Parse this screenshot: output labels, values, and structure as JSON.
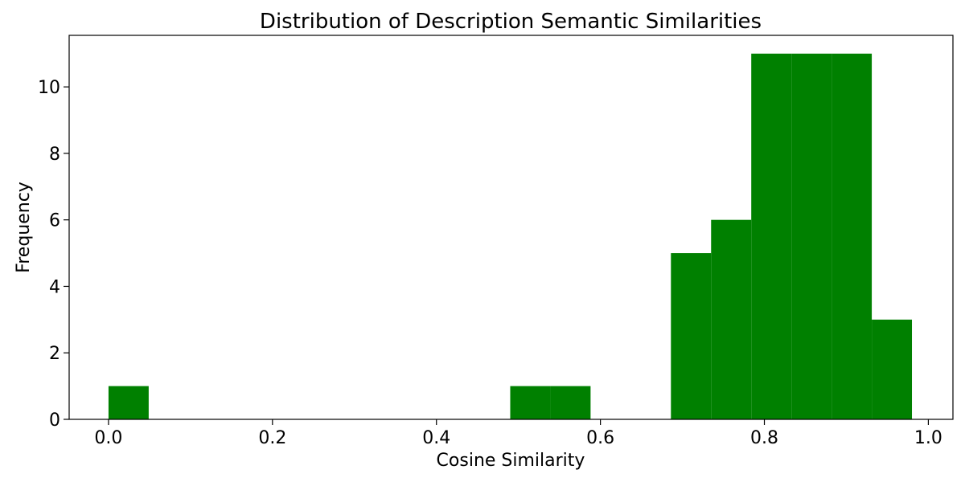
{
  "chart_data": {
    "type": "bar",
    "title": "Distribution of Description Semantic Similarities",
    "xlabel": "Cosine Similarity",
    "ylabel": "Frequency",
    "bar_color": "#008000",
    "xlim": [
      -0.048,
      1.03
    ],
    "ylim": [
      0,
      11.55
    ],
    "xticks": [
      0.0,
      0.2,
      0.4,
      0.6,
      0.8,
      1.0
    ],
    "xtick_labels": [
      "0.0",
      "0.2",
      "0.4",
      "0.6",
      "0.8",
      "1.0"
    ],
    "yticks": [
      0,
      2,
      4,
      6,
      8,
      10
    ],
    "ytick_labels": [
      "0",
      "2",
      "4",
      "6",
      "8",
      "10"
    ],
    "grid": false,
    "bins": [
      {
        "x0": 0.0,
        "x1": 0.049,
        "count": 1
      },
      {
        "x0": 0.049,
        "x1": 0.098,
        "count": 0
      },
      {
        "x0": 0.098,
        "x1": 0.147,
        "count": 0
      },
      {
        "x0": 0.147,
        "x1": 0.196,
        "count": 0
      },
      {
        "x0": 0.196,
        "x1": 0.245,
        "count": 0
      },
      {
        "x0": 0.245,
        "x1": 0.294,
        "count": 0
      },
      {
        "x0": 0.294,
        "x1": 0.343,
        "count": 0
      },
      {
        "x0": 0.343,
        "x1": 0.392,
        "count": 0
      },
      {
        "x0": 0.392,
        "x1": 0.441,
        "count": 0
      },
      {
        "x0": 0.441,
        "x1": 0.49,
        "count": 0
      },
      {
        "x0": 0.49,
        "x1": 0.539,
        "count": 1
      },
      {
        "x0": 0.539,
        "x1": 0.588,
        "count": 1
      },
      {
        "x0": 0.588,
        "x1": 0.637,
        "count": 0
      },
      {
        "x0": 0.637,
        "x1": 0.686,
        "count": 0
      },
      {
        "x0": 0.686,
        "x1": 0.735,
        "count": 5
      },
      {
        "x0": 0.735,
        "x1": 0.784,
        "count": 6
      },
      {
        "x0": 0.784,
        "x1": 0.833,
        "count": 11
      },
      {
        "x0": 0.833,
        "x1": 0.882,
        "count": 11
      },
      {
        "x0": 0.882,
        "x1": 0.931,
        "count": 11
      },
      {
        "x0": 0.931,
        "x1": 0.98,
        "count": 3
      }
    ]
  }
}
